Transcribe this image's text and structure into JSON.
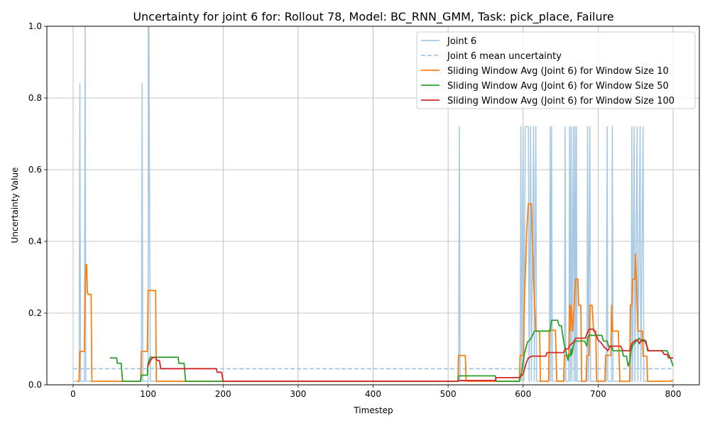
{
  "chart_data": {
    "type": "line",
    "title": "Uncertainty for joint 6 for: Rollout 78, Model: BC_RNN_GMM, Task: pick_place, Failure",
    "xlabel": "Timestep",
    "ylabel": "Uncertainty Value",
    "xlim": [
      -35,
      835
    ],
    "ylim": [
      0,
      1.0
    ],
    "xticks": [
      0,
      100,
      200,
      300,
      400,
      500,
      600,
      700,
      800
    ],
    "yticks": [
      0.0,
      0.2,
      0.4,
      0.6,
      0.8,
      1.0
    ],
    "xtick_labels": [
      "0",
      "100",
      "200",
      "300",
      "400",
      "500",
      "600",
      "700",
      "800"
    ],
    "ytick_labels": [
      "0.0",
      "0.2",
      "0.4",
      "0.6",
      "0.8",
      "1.0"
    ],
    "grid": true,
    "legend_position": "top-right",
    "series": [
      {
        "name": "Joint 6",
        "color": "#a6c8e2",
        "style": "solid",
        "points": [
          [
            0,
            0.01
          ],
          [
            8,
            0.01
          ],
          [
            9,
            0.84
          ],
          [
            10,
            0.01
          ],
          [
            15,
            0.01
          ],
          [
            16,
            1.0
          ],
          [
            17,
            0.01
          ],
          [
            91,
            0.01
          ],
          [
            92,
            0.84
          ],
          [
            93,
            0.01
          ],
          [
            100,
            0.01
          ],
          [
            101,
            1.0
          ],
          [
            103,
            0.01
          ],
          [
            514,
            0.01
          ],
          [
            515,
            0.72
          ],
          [
            516,
            0.01
          ],
          [
            596,
            0.01
          ],
          [
            597,
            0.72
          ],
          [
            598,
            0.01
          ],
          [
            600,
            0.72
          ],
          [
            601,
            0.01
          ],
          [
            603,
            0.72
          ],
          [
            607,
            0.72
          ],
          [
            608,
            0.01
          ],
          [
            610,
            0.72
          ],
          [
            611,
            0.01
          ],
          [
            614,
            0.72
          ],
          [
            615,
            0.01
          ],
          [
            617,
            0.72
          ],
          [
            618,
            0.01
          ],
          [
            635,
            0.01
          ],
          [
            636,
            0.72
          ],
          [
            637,
            0.01
          ],
          [
            638,
            0.72
          ],
          [
            639,
            0.01
          ],
          [
            655,
            0.01
          ],
          [
            656,
            0.72
          ],
          [
            657,
            0.01
          ],
          [
            661,
            0.01
          ],
          [
            662,
            0.72
          ],
          [
            663,
            0.01
          ],
          [
            664,
            0.72
          ],
          [
            665,
            0.01
          ],
          [
            667,
            0.72
          ],
          [
            668,
            0.01
          ],
          [
            669,
            0.72
          ],
          [
            670,
            0.01
          ],
          [
            671,
            0.72
          ],
          [
            672,
            0.01
          ],
          [
            685,
            0.01
          ],
          [
            686,
            0.72
          ],
          [
            687,
            0.01
          ],
          [
            689,
            0.72
          ],
          [
            690,
            0.01
          ],
          [
            711,
            0.01
          ],
          [
            712,
            0.72
          ],
          [
            713,
            0.01
          ],
          [
            718,
            0.01
          ],
          [
            719,
            0.72
          ],
          [
            720,
            0.01
          ],
          [
            744,
            0.01
          ],
          [
            745,
            0.72
          ],
          [
            746,
            0.01
          ],
          [
            748,
            0.72
          ],
          [
            749,
            0.01
          ],
          [
            752,
            0.72
          ],
          [
            753,
            0.01
          ],
          [
            756,
            0.72
          ],
          [
            757,
            0.01
          ],
          [
            760,
            0.72
          ],
          [
            761,
            0.01
          ],
          [
            800,
            0.01
          ]
        ]
      },
      {
        "name": "Joint 6 mean uncertainty",
        "color": "#a6c8e2",
        "style": "dashed",
        "points": [
          [
            0,
            0.045
          ],
          [
            800,
            0.045
          ]
        ]
      },
      {
        "name": "Sliding Window Avg (Joint 6) for Window Size 10",
        "color": "#ff7f0e",
        "style": "solid",
        "points": [
          [
            5,
            0.01
          ],
          [
            8,
            0.01
          ],
          [
            9,
            0.093
          ],
          [
            15,
            0.093
          ],
          [
            16,
            0.26
          ],
          [
            17,
            0.335
          ],
          [
            18,
            0.335
          ],
          [
            19,
            0.26
          ],
          [
            20,
            0.252
          ],
          [
            24,
            0.252
          ],
          [
            25,
            0.01
          ],
          [
            90,
            0.01
          ],
          [
            91,
            0.093
          ],
          [
            99,
            0.093
          ],
          [
            100,
            0.263
          ],
          [
            110,
            0.263
          ],
          [
            111,
            0.01
          ],
          [
            513,
            0.01
          ],
          [
            514,
            0.082
          ],
          [
            523,
            0.082
          ],
          [
            524,
            0.01
          ],
          [
            595,
            0.01
          ],
          [
            596,
            0.082
          ],
          [
            600,
            0.082
          ],
          [
            602,
            0.25
          ],
          [
            605,
            0.435
          ],
          [
            607,
            0.505
          ],
          [
            611,
            0.505
          ],
          [
            612,
            0.43
          ],
          [
            614,
            0.29
          ],
          [
            617,
            0.15
          ],
          [
            622,
            0.15
          ],
          [
            623,
            0.01
          ],
          [
            634,
            0.01
          ],
          [
            635,
            0.152
          ],
          [
            643,
            0.152
          ],
          [
            645,
            0.01
          ],
          [
            654,
            0.01
          ],
          [
            655,
            0.082
          ],
          [
            661,
            0.082
          ],
          [
            662,
            0.222
          ],
          [
            663,
            0.152
          ],
          [
            664,
            0.222
          ],
          [
            666,
            0.15
          ],
          [
            668,
            0.222
          ],
          [
            670,
            0.295
          ],
          [
            673,
            0.295
          ],
          [
            674,
            0.222
          ],
          [
            677,
            0.222
          ],
          [
            678,
            0.01
          ],
          [
            684,
            0.01
          ],
          [
            685,
            0.082
          ],
          [
            688,
            0.082
          ],
          [
            689,
            0.222
          ],
          [
            692,
            0.222
          ],
          [
            694,
            0.15
          ],
          [
            697,
            0.15
          ],
          [
            698,
            0.01
          ],
          [
            709,
            0.01
          ],
          [
            710,
            0.082
          ],
          [
            717,
            0.082
          ],
          [
            718,
            0.222
          ],
          [
            719,
            0.15
          ],
          [
            727,
            0.15
          ],
          [
            729,
            0.01
          ],
          [
            742,
            0.01
          ],
          [
            743,
            0.222
          ],
          [
            745,
            0.222
          ],
          [
            746,
            0.295
          ],
          [
            749,
            0.295
          ],
          [
            750,
            0.365
          ],
          [
            751,
            0.295
          ],
          [
            752,
            0.222
          ],
          [
            753,
            0.15
          ],
          [
            759,
            0.15
          ],
          [
            760,
            0.08
          ],
          [
            765,
            0.08
          ],
          [
            766,
            0.01
          ],
          [
            795,
            0.01
          ],
          [
            800,
            0.012
          ]
        ]
      },
      {
        "name": "Sliding Window Avg (Joint 6) for Window Size 50",
        "color": "#2ca02c",
        "style": "solid",
        "points": [
          [
            49,
            0.075
          ],
          [
            58,
            0.075
          ],
          [
            59,
            0.06
          ],
          [
            64,
            0.06
          ],
          [
            66,
            0.01
          ],
          [
            90,
            0.01
          ],
          [
            91,
            0.027
          ],
          [
            99,
            0.027
          ],
          [
            100,
            0.06
          ],
          [
            103,
            0.077
          ],
          [
            140,
            0.077
          ],
          [
            141,
            0.06
          ],
          [
            148,
            0.06
          ],
          [
            150,
            0.01
          ],
          [
            513,
            0.01
          ],
          [
            514,
            0.025
          ],
          [
            563,
            0.025
          ],
          [
            564,
            0.01
          ],
          [
            595,
            0.01
          ],
          [
            598,
            0.035
          ],
          [
            602,
            0.09
          ],
          [
            606,
            0.12
          ],
          [
            609,
            0.125
          ],
          [
            612,
            0.135
          ],
          [
            615,
            0.15
          ],
          [
            636,
            0.15
          ],
          [
            638,
            0.18
          ],
          [
            646,
            0.18
          ],
          [
            648,
            0.165
          ],
          [
            651,
            0.165
          ],
          [
            654,
            0.122
          ],
          [
            658,
            0.085
          ],
          [
            660,
            0.068
          ],
          [
            661,
            0.085
          ],
          [
            663,
            0.08
          ],
          [
            664,
            0.1
          ],
          [
            665,
            0.085
          ],
          [
            667,
            0.108
          ],
          [
            669,
            0.122
          ],
          [
            682,
            0.122
          ],
          [
            685,
            0.108
          ],
          [
            686,
            0.13
          ],
          [
            688,
            0.138
          ],
          [
            705,
            0.138
          ],
          [
            707,
            0.122
          ],
          [
            712,
            0.122
          ],
          [
            714,
            0.108
          ],
          [
            718,
            0.108
          ],
          [
            720,
            0.095
          ],
          [
            732,
            0.095
          ],
          [
            734,
            0.08
          ],
          [
            738,
            0.08
          ],
          [
            740,
            0.052
          ],
          [
            742,
            0.065
          ],
          [
            744,
            0.095
          ],
          [
            746,
            0.11
          ],
          [
            751,
            0.122
          ],
          [
            755,
            0.13
          ],
          [
            758,
            0.122
          ],
          [
            764,
            0.122
          ],
          [
            766,
            0.095
          ],
          [
            792,
            0.095
          ],
          [
            797,
            0.07
          ],
          [
            800,
            0.052
          ]
        ]
      },
      {
        "name": "Sliding Window Avg (Joint 6) for Window Size 100",
        "color": "#d62728",
        "style": "solid",
        "points": [
          [
            99,
            0.05
          ],
          [
            104,
            0.07
          ],
          [
            106,
            0.076
          ],
          [
            110,
            0.076
          ],
          [
            112,
            0.068
          ],
          [
            115,
            0.068
          ],
          [
            117,
            0.045
          ],
          [
            191,
            0.045
          ],
          [
            192,
            0.035
          ],
          [
            198,
            0.035
          ],
          [
            200,
            0.01
          ],
          [
            513,
            0.01
          ],
          [
            515,
            0.012
          ],
          [
            563,
            0.012
          ],
          [
            564,
            0.02
          ],
          [
            595,
            0.02
          ],
          [
            600,
            0.03
          ],
          [
            604,
            0.06
          ],
          [
            607,
            0.075
          ],
          [
            612,
            0.08
          ],
          [
            630,
            0.08
          ],
          [
            632,
            0.09
          ],
          [
            654,
            0.09
          ],
          [
            656,
            0.1
          ],
          [
            660,
            0.1
          ],
          [
            662,
            0.11
          ],
          [
            667,
            0.118
          ],
          [
            670,
            0.13
          ],
          [
            683,
            0.13
          ],
          [
            685,
            0.142
          ],
          [
            688,
            0.155
          ],
          [
            694,
            0.155
          ],
          [
            697,
            0.14
          ],
          [
            700,
            0.125
          ],
          [
            705,
            0.115
          ],
          [
            708,
            0.105
          ],
          [
            711,
            0.1
          ],
          [
            713,
            0.095
          ],
          [
            716,
            0.108
          ],
          [
            730,
            0.108
          ],
          [
            733,
            0.095
          ],
          [
            742,
            0.095
          ],
          [
            745,
            0.115
          ],
          [
            750,
            0.125
          ],
          [
            753,
            0.125
          ],
          [
            755,
            0.115
          ],
          [
            758,
            0.125
          ],
          [
            762,
            0.125
          ],
          [
            765,
            0.108
          ],
          [
            767,
            0.095
          ],
          [
            785,
            0.095
          ],
          [
            788,
            0.085
          ],
          [
            792,
            0.085
          ],
          [
            794,
            0.075
          ],
          [
            800,
            0.075
          ]
        ]
      }
    ]
  }
}
